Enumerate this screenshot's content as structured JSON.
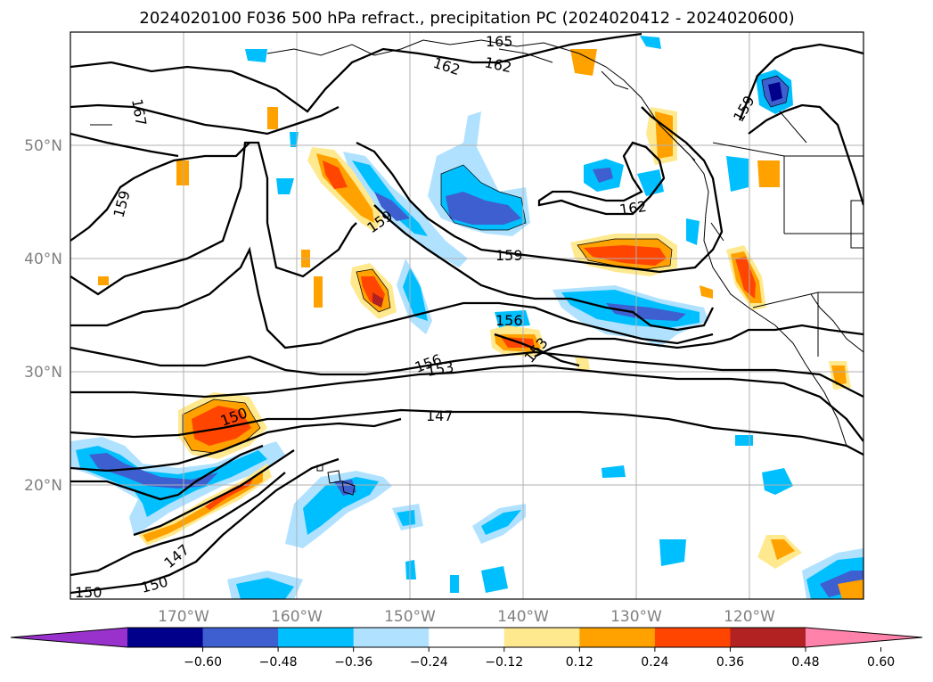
{
  "title": "2024020100 F036 500 hPa refract., precipitation PC (2024020412 - 2024020600)",
  "map": {
    "lat_labels": [
      "50°N",
      "40°N",
      "30°N",
      "20°N"
    ],
    "lon_labels": [
      "170°W",
      "160°W",
      "150°W",
      "140°W",
      "130°W",
      "120°W"
    ],
    "contour_labels": [
      "165",
      "162",
      "162",
      "167",
      "159",
      "159",
      "159",
      "162",
      "159",
      "156",
      "156",
      "153",
      "153",
      "150",
      "147",
      "147",
      "150",
      "150"
    ]
  },
  "colorbar": {
    "colors": [
      "#9932cc",
      "#00008b",
      "#3e5fcf",
      "#00bfff",
      "#b0e2ff",
      "#ffffff",
      "#ffe98f",
      "#ffa200",
      "#ff4500",
      "#b22222",
      "#ff82ab"
    ],
    "ticks": [
      "−0.60",
      "−0.48",
      "−0.36",
      "−0.24",
      "−0.12",
      "0.12",
      "0.24",
      "0.36",
      "0.48",
      "0.60"
    ]
  }
}
